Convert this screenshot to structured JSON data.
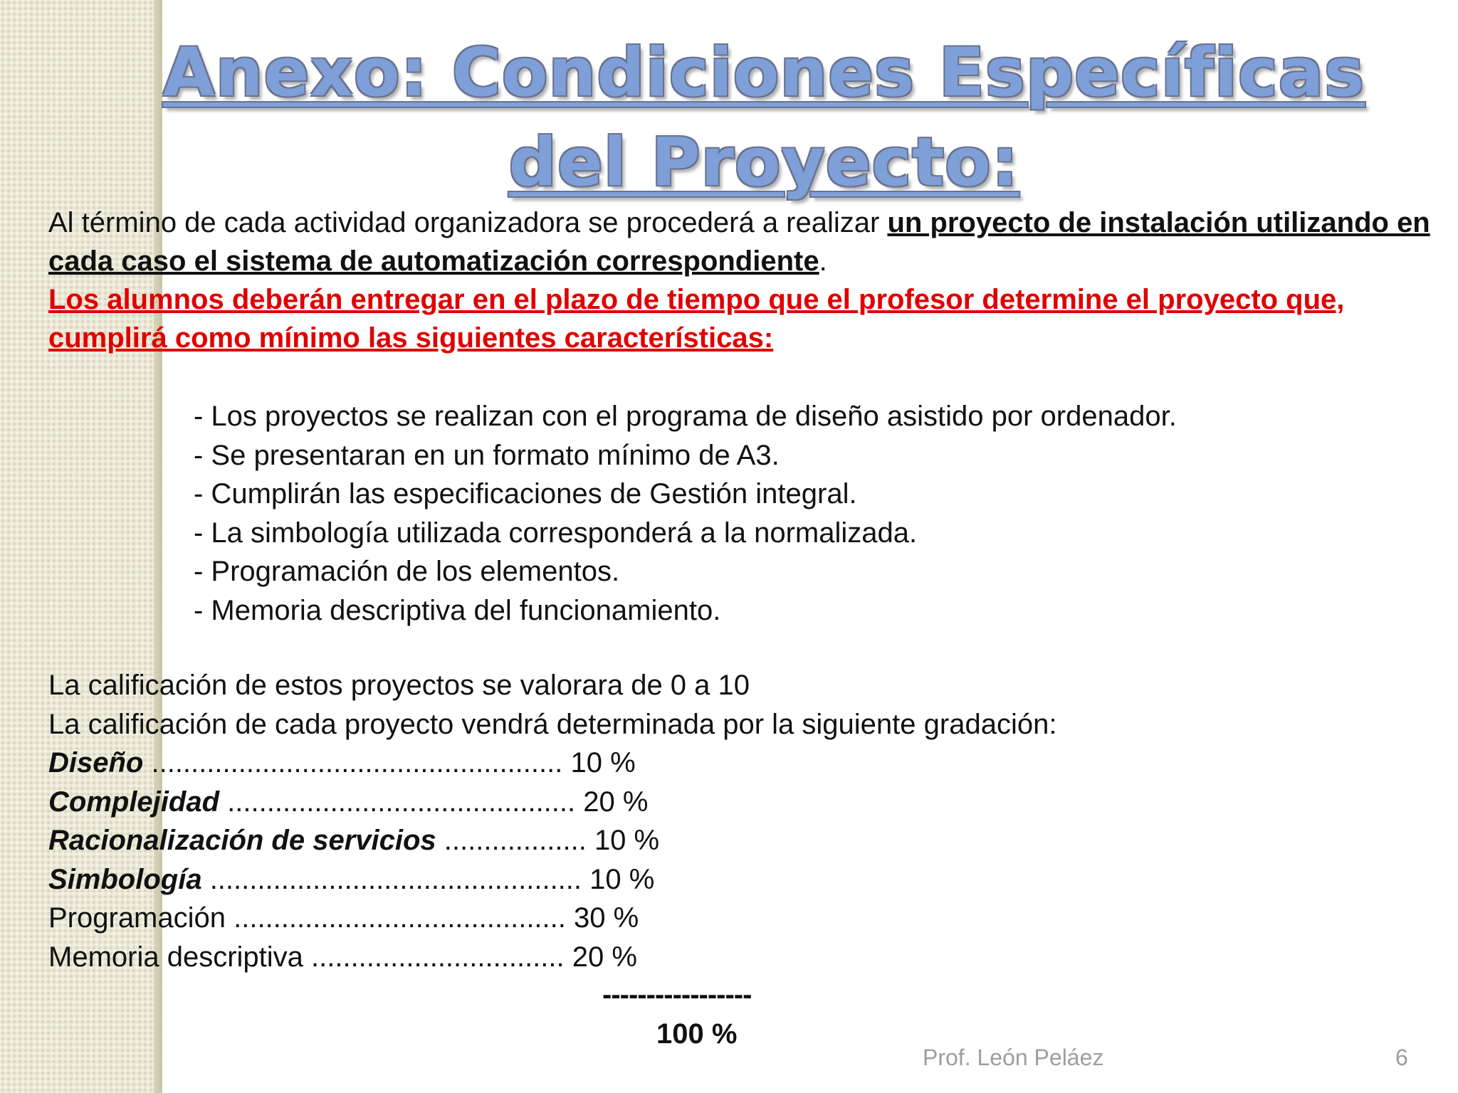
{
  "slide": {
    "title": "Anexo: Condiciones Específicas del Proyecto:",
    "intro": {
      "plain": "Al término de cada actividad organizadora se procederá a realizar ",
      "emphasis": "un proyecto de instalación utilizando en cada caso el sistema de automatización correspondiente",
      "end": "."
    },
    "requirement": "Los alumnos deberán entregar en el plazo de tiempo que el profesor determine el proyecto que, cumplirá como mínimo las siguientes características:",
    "requirement_color": "#e00000",
    "characteristics": [
      "- Los proyectos se realizan con el programa de diseño asistido por ordenador.",
      "- Se presentaran en un formato mínimo de A3.",
      "- Cumplirán las especificaciones de Gestión integral.",
      "- La simbología utilizada corresponderá a la normalizada.",
      "- Programación de los elementos.",
      "- Memoria descriptiva del funcionamiento."
    ],
    "grading_intro": [
      "La calificación de estos proyectos se valorara  de 0 a 10",
      "La calificación de cada proyecto vendrá determinada por la siguiente gradación:"
    ],
    "grading": [
      {
        "label": "Diseño",
        "leader": " ....................................................  ",
        "value": "10 %"
      },
      {
        "label": "Complejidad",
        "leader": " ............................................ ",
        "value": "20 %"
      },
      {
        "label": "Racionalización de servicios",
        "leader": " .................. ",
        "value": "10 %"
      },
      {
        "label": "Simbología",
        "leader": " ............................................... ",
        "value": "10 %"
      },
      {
        "label": "Programación",
        "leader": " .......................................... ",
        "value": "30 %"
      },
      {
        "label": "Memoria descriptiva",
        "leader": " ................................  ",
        "value": "20 %"
      }
    ],
    "total_separator": "-----------------",
    "total": "100 %",
    "title_color": "#7f9fd8"
  },
  "footer": {
    "author": "Prof. León Peláez",
    "page_number": "6"
  }
}
